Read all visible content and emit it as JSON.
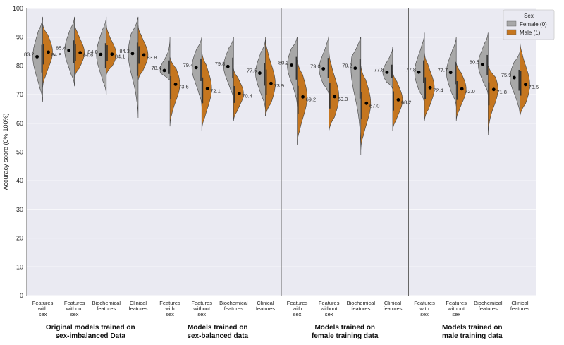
{
  "chart_data": {
    "type": "violin",
    "ylabel": "Accuracy score (0%-100%)",
    "ylim": [
      0,
      100
    ],
    "yticks": [
      "0",
      "10",
      "20",
      "30",
      "40",
      "50",
      "60",
      "70",
      "80",
      "90",
      "100"
    ],
    "grid": true,
    "legend": {
      "title": "Sex",
      "position": "top-right",
      "entries": [
        "Female (0)",
        "Male (1)"
      ],
      "colors": [
        "#a8a8a8",
        "#c5761f"
      ]
    },
    "groups": [
      {
        "title_lines": [
          "Original models trained on",
          "sex-imbalanced Data"
        ],
        "categories": [
          {
            "label_lines": [
              "Features",
              "with",
              "sex"
            ],
            "female": {
              "mean": 83.2,
              "min": 67.5,
              "max": 97.0,
              "label": "83.2"
            },
            "male": {
              "mean": 84.8,
              "min": 72.5,
              "max": 94.5,
              "label": "84.8"
            }
          },
          {
            "label_lines": [
              "Features",
              "without",
              "sex"
            ],
            "female": {
              "mean": 85.4,
              "min": 73.0,
              "max": 97.0,
              "label": "85.4"
            },
            "male": {
              "mean": 84.6,
              "min": 76.0,
              "max": 95.0,
              "label": "84.6"
            }
          },
          {
            "label_lines": [
              "Biochemical",
              "features"
            ],
            "female": {
              "mean": 84.0,
              "min": 70.0,
              "max": 97.0,
              "label": "84.0"
            },
            "male": {
              "mean": 84.1,
              "min": 77.0,
              "max": 94.5,
              "label": "84.1"
            }
          },
          {
            "label_lines": [
              "Clinical",
              "features"
            ],
            "female": {
              "mean": 84.3,
              "min": 62.0,
              "max": 97.0,
              "label": "84.3"
            },
            "male": {
              "mean": 83.8,
              "min": 75.0,
              "max": 94.0,
              "label": "83.8"
            }
          }
        ]
      },
      {
        "title_lines": [
          "Models trained on",
          "sex-balanced data"
        ],
        "categories": [
          {
            "label_lines": [
              "Features",
              "with",
              "sex"
            ],
            "female": {
              "mean": 78.4,
              "min": 75.0,
              "max": 90.0,
              "label": "78.4"
            },
            "male": {
              "mean": 73.6,
              "min": 59.0,
              "max": 83.0,
              "label": "73.6"
            }
          },
          {
            "label_lines": [
              "Features",
              "without",
              "sex"
            ],
            "female": {
              "mean": 79.4,
              "min": 66.0,
              "max": 90.0,
              "label": "79.4"
            },
            "male": {
              "mean": 72.1,
              "min": 57.5,
              "max": 85.0,
              "label": "72.1"
            }
          },
          {
            "label_lines": [
              "Biochemical",
              "features"
            ],
            "female": {
              "mean": 79.8,
              "min": 68.0,
              "max": 90.0,
              "label": "79.8"
            },
            "male": {
              "mean": 70.4,
              "min": 61.0,
              "max": 79.0,
              "label": "70.4"
            }
          },
          {
            "label_lines": [
              "Clinical",
              "features"
            ],
            "female": {
              "mean": 77.5,
              "min": 65.0,
              "max": 89.0,
              "label": "77.5"
            },
            "male": {
              "mean": 73.9,
              "min": 62.5,
              "max": 90.0,
              "label": "73.9"
            }
          }
        ]
      },
      {
        "title_lines": [
          "Models trained on",
          "female training data"
        ],
        "categories": [
          {
            "label_lines": [
              "Features",
              "with",
              "sex"
            ],
            "female": {
              "mean": 80.2,
              "min": 66.0,
              "max": 90.0,
              "label": "80.2"
            },
            "male": {
              "mean": 69.2,
              "min": 52.5,
              "max": 82.0,
              "label": "69.2"
            }
          },
          {
            "label_lines": [
              "Features",
              "without",
              "sex"
            ],
            "female": {
              "mean": 79.0,
              "min": 70.0,
              "max": 91.5,
              "label": "79.0"
            },
            "male": {
              "mean": 69.3,
              "min": 57.5,
              "max": 85.0,
              "label": "69.3"
            }
          },
          {
            "label_lines": [
              "Biochemical",
              "features"
            ],
            "female": {
              "mean": 79.2,
              "min": 49.0,
              "max": 90.0,
              "label": "79.2"
            },
            "male": {
              "mean": 67.0,
              "min": 51.0,
              "max": 80.0,
              "label": "67.0"
            }
          },
          {
            "label_lines": [
              "Clinical",
              "features"
            ],
            "female": {
              "mean": 77.8,
              "min": 72.0,
              "max": 86.5,
              "label": "77.8"
            },
            "male": {
              "mean": 68.2,
              "min": 57.5,
              "max": 78.0,
              "label": "68.2"
            }
          }
        ]
      },
      {
        "title_lines": [
          "Models trained on",
          "male training data"
        ],
        "categories": [
          {
            "label_lines": [
              "Features",
              "with",
              "sex"
            ],
            "female": {
              "mean": 77.8,
              "min": 67.0,
              "max": 91.5,
              "label": "77.8"
            },
            "male": {
              "mean": 72.4,
              "min": 61.0,
              "max": 84.5,
              "label": "72.4"
            }
          },
          {
            "label_lines": [
              "Features",
              "without",
              "sex"
            ],
            "female": {
              "mean": 77.7,
              "min": 66.0,
              "max": 90.0,
              "label": "77.7"
            },
            "male": {
              "mean": 72.0,
              "min": 61.0,
              "max": 81.0,
              "label": "72.0"
            }
          },
          {
            "label_lines": [
              "Biochemical",
              "features"
            ],
            "female": {
              "mean": 80.5,
              "min": 70.0,
              "max": 91.5,
              "label": "80.5"
            },
            "male": {
              "mean": 71.8,
              "min": 56.0,
              "max": 80.0,
              "label": "71.8"
            }
          },
          {
            "label_lines": [
              "Clinical",
              "features"
            ],
            "female": {
              "mean": 75.9,
              "min": 63.0,
              "max": 85.0,
              "label": "75.9"
            },
            "male": {
              "mean": 73.5,
              "min": 62.5,
              "max": 89.0,
              "label": "73.5"
            }
          }
        ]
      }
    ]
  }
}
